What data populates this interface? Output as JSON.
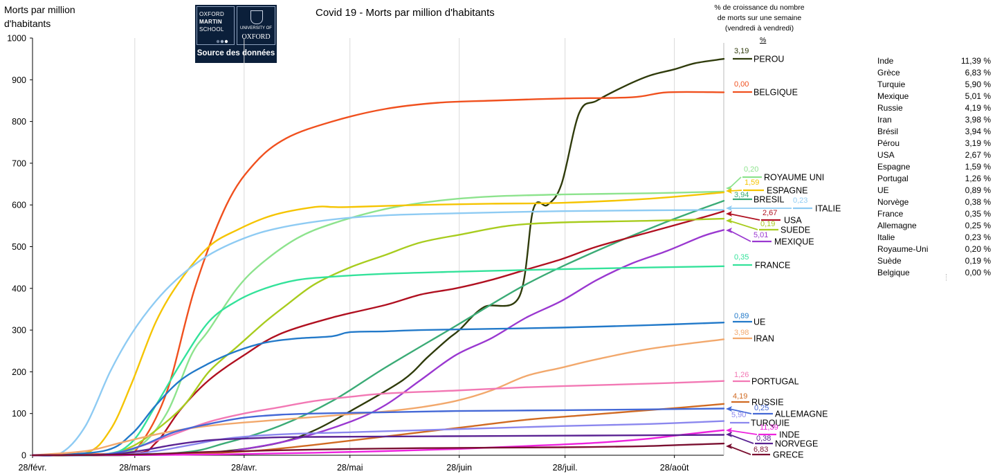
{
  "header": {
    "title": "Covid 19 - Morts par million d'habitants",
    "ylabel_line1": "Morts par million",
    "ylabel_line2": "d'habitants",
    "pct_header_line1": "% de croissance du nombre",
    "pct_header_line2": "de morts sur une semaine",
    "pct_header_line3": "(vendredi à vendredi)",
    "pct_unit": "%"
  },
  "logo": {
    "line1": "OXFORD",
    "line2": "MARTIN",
    "line3": "SCHOOL",
    "univ_line1": "UNIVERSITY OF",
    "univ_line2": "OXFORD",
    "caption": "Source des données"
  },
  "colors": {
    "background": "#ffffff",
    "logo_bg": "#0b1f3a",
    "axis": "#000000",
    "grid": "#d9d9d9"
  },
  "chart_data": {
    "type": "line",
    "title": "Covid 19 - Morts par million d'habitants",
    "ylabel": "Morts par million d'habitants",
    "ylim": [
      0,
      1000
    ],
    "yticks": [
      0,
      100,
      200,
      300,
      400,
      500,
      600,
      700,
      800,
      900,
      1000
    ],
    "x_tick_labels": [
      "28/févr.",
      "28/mars",
      "28/avr.",
      "28/mai",
      "28/juin",
      "28/juil.",
      "28/août"
    ],
    "x_domain_days": [
      0,
      196
    ],
    "grid": "vertical",
    "series": [
      {
        "name": "PEROU",
        "pct": "3,19",
        "color": "#2f3b0b",
        "x": [
          0,
          25,
          40,
          55,
          70,
          80,
          91,
          105,
          112,
          118,
          121,
          128,
          138,
          142,
          146,
          150,
          155,
          160,
          168,
          175,
          182,
          188,
          196
        ],
        "y": [
          0,
          0,
          3,
          10,
          30,
          60,
          110,
          180,
          235,
          280,
          300,
          355,
          380,
          590,
          600,
          650,
          820,
          850,
          885,
          910,
          925,
          940,
          950
        ]
      },
      {
        "name": "BELGIQUE",
        "pct": "0,00",
        "color": "#f0501e",
        "x": [
          0,
          25,
          30,
          38,
          46,
          55,
          63,
          72,
          85,
          100,
          115,
          130,
          150,
          170,
          180,
          196
        ],
        "y": [
          0,
          5,
          20,
          150,
          400,
          600,
          700,
          760,
          800,
          830,
          845,
          850,
          855,
          858,
          870,
          870
        ]
      },
      {
        "name": "ROYAUME UNI",
        "pct": "0,20",
        "color": "#8de38d",
        "x": [
          0,
          20,
          30,
          38,
          45,
          50,
          58,
          65,
          75,
          85,
          100,
          115,
          130,
          150,
          175,
          196
        ],
        "y": [
          0,
          2,
          20,
          100,
          240,
          300,
          400,
          460,
          520,
          555,
          590,
          610,
          620,
          625,
          628,
          632
        ]
      },
      {
        "name": "ESPAGNE",
        "pct": "1,59",
        "color": "#f5c400",
        "x": [
          0,
          15,
          22,
          28,
          35,
          42,
          50,
          58,
          68,
          80,
          85,
          90,
          110,
          130,
          150,
          175,
          196
        ],
        "y": [
          0,
          5,
          60,
          170,
          320,
          420,
          500,
          540,
          575,
          595,
          595,
          595,
          600,
          603,
          605,
          615,
          630
        ]
      },
      {
        "name": "BRESIL",
        "pct": "3,94",
        "color": "#3bab76",
        "x": [
          0,
          40,
          55,
          70,
          85,
          100,
          120,
          140,
          160,
          180,
          196
        ],
        "y": [
          0,
          5,
          30,
          70,
          130,
          210,
          310,
          410,
          490,
          560,
          610
        ]
      },
      {
        "name": "ITALIE",
        "pct": "0,23",
        "color": "#8ecbf3",
        "x": [
          0,
          8,
          15,
          22,
          28,
          35,
          42,
          50,
          60,
          70,
          85,
          100,
          120,
          150,
          175,
          196
        ],
        "y": [
          0,
          5,
          70,
          200,
          290,
          370,
          430,
          480,
          520,
          545,
          565,
          575,
          580,
          585,
          587,
          588
        ]
      },
      {
        "name": "USA",
        "pct": "2,67",
        "color": "#b01020",
        "x": [
          0,
          28,
          35,
          42,
          50,
          60,
          70,
          85,
          100,
          110,
          120,
          130,
          140,
          150,
          160,
          175,
          190,
          196
        ],
        "y": [
          0,
          3,
          30,
          110,
          180,
          240,
          290,
          330,
          360,
          385,
          400,
          420,
          445,
          470,
          500,
          535,
          570,
          585
        ]
      },
      {
        "name": "SUEDE",
        "pct": "0,19",
        "color": "#a8cc1e",
        "x": [
          0,
          20,
          28,
          35,
          43,
          50,
          58,
          66,
          72,
          80,
          90,
          100,
          110,
          122,
          135,
          150,
          175,
          196
        ],
        "y": [
          0,
          2,
          20,
          60,
          120,
          200,
          260,
          320,
          360,
          410,
          450,
          480,
          510,
          530,
          550,
          558,
          562,
          567
        ]
      },
      {
        "name": "MEXIQUE",
        "pct": "5,01",
        "color": "#9a38d0",
        "x": [
          0,
          45,
          60,
          75,
          90,
          100,
          110,
          120,
          130,
          140,
          150,
          160,
          170,
          180,
          190,
          196
        ],
        "y": [
          0,
          2,
          15,
          40,
          80,
          120,
          180,
          240,
          280,
          330,
          370,
          420,
          460,
          490,
          525,
          540
        ]
      },
      {
        "name": "FRANCE",
        "pct": "0,35",
        "color": "#33e29a",
        "x": [
          0,
          20,
          28,
          35,
          42,
          50,
          58,
          66,
          75,
          85,
          100,
          120,
          150,
          175,
          196
        ],
        "y": [
          0,
          2,
          30,
          120,
          220,
          320,
          370,
          400,
          420,
          428,
          435,
          440,
          446,
          450,
          453
        ]
      },
      {
        "name": "UE",
        "pct": "0,89",
        "color": "#2279c9",
        "x": [
          0,
          20,
          28,
          35,
          42,
          50,
          58,
          66,
          75,
          85,
          90,
          100,
          110,
          130,
          150,
          175,
          196
        ],
        "y": [
          0,
          10,
          50,
          120,
          180,
          220,
          250,
          270,
          280,
          285,
          295,
          297,
          300,
          303,
          306,
          312,
          318
        ]
      },
      {
        "name": "IRAN",
        "pct": "3,98",
        "color": "#f2a86c",
        "x": [
          0,
          15,
          25,
          35,
          45,
          55,
          70,
          85,
          100,
          110,
          120,
          130,
          140,
          150,
          160,
          175,
          196
        ],
        "y": [
          0,
          10,
          30,
          50,
          65,
          75,
          85,
          95,
          105,
          115,
          130,
          155,
          190,
          210,
          230,
          255,
          278
        ]
      },
      {
        "name": "PORTUGAL",
        "pct": "1,26",
        "color": "#f278b4",
        "x": [
          0,
          20,
          30,
          40,
          50,
          60,
          70,
          80,
          90,
          100,
          120,
          140,
          160,
          180,
          196
        ],
        "y": [
          0,
          2,
          20,
          50,
          80,
          100,
          115,
          130,
          140,
          148,
          155,
          163,
          168,
          173,
          178
        ]
      },
      {
        "name": "RUSSIE",
        "pct": "4,19",
        "color": "#d06a22",
        "x": [
          0,
          30,
          50,
          65,
          80,
          95,
          110,
          125,
          140,
          155,
          170,
          185,
          196
        ],
        "y": [
          0,
          1,
          5,
          12,
          25,
          40,
          55,
          70,
          85,
          95,
          105,
          115,
          123
        ]
      },
      {
        "name": "ALLEMAGNE",
        "pct": "0,25",
        "color": "#4468d6",
        "x": [
          0,
          20,
          30,
          40,
          50,
          60,
          70,
          80,
          100,
          120,
          150,
          175,
          196
        ],
        "y": [
          0,
          2,
          20,
          55,
          75,
          90,
          97,
          100,
          103,
          106,
          108,
          110,
          112
        ]
      },
      {
        "name": "TURQUIE",
        "pct": "5,90",
        "color": "#8b87ee",
        "x": [
          0,
          25,
          35,
          45,
          55,
          70,
          90,
          110,
          130,
          150,
          175,
          196
        ],
        "y": [
          0,
          2,
          10,
          25,
          40,
          50,
          55,
          60,
          65,
          70,
          75,
          82
        ]
      },
      {
        "name": "INDE",
        "pct": "11,39",
        "color": "#ee22de",
        "x": [
          0,
          40,
          60,
          80,
          100,
          120,
          140,
          160,
          175,
          185,
          196
        ],
        "y": [
          0,
          1,
          3,
          6,
          10,
          15,
          22,
          30,
          40,
          50,
          60
        ]
      },
      {
        "name": "NORVEGE",
        "pct": "0,38",
        "color": "#5a2292",
        "x": [
          0,
          20,
          30,
          40,
          50,
          60,
          70,
          80,
          100,
          125,
          150,
          175,
          196
        ],
        "y": [
          0,
          1,
          10,
          25,
          36,
          40,
          43,
          44,
          45,
          46,
          47,
          48,
          49
        ]
      },
      {
        "name": "GRECE",
        "pct": "6,83",
        "color": "#7a0f30",
        "x": [
          0,
          30,
          50,
          70,
          90,
          110,
          130,
          150,
          170,
          185,
          196
        ],
        "y": [
          0,
          2,
          8,
          12,
          15,
          17,
          18,
          19,
          21,
          25,
          28
        ]
      }
    ]
  },
  "right_table": {
    "rows": [
      {
        "country": "Inde",
        "value": "11,39 %"
      },
      {
        "country": "Grèce",
        "value": "6,83 %"
      },
      {
        "country": "Turquie",
        "value": "5,90 %"
      },
      {
        "country": "Mexique",
        "value": "5,01 %"
      },
      {
        "country": "Russie",
        "value": "4,19 %"
      },
      {
        "country": "Iran",
        "value": "3,98 %"
      },
      {
        "country": "Brésil",
        "value": "3,94 %"
      },
      {
        "country": "Pérou",
        "value": "3,19 %"
      },
      {
        "country": "USA",
        "value": "2,67 %"
      },
      {
        "country": "Espagne",
        "value": "1,59 %"
      },
      {
        "country": "Portugal",
        "value": "1,26 %"
      },
      {
        "country": "UE",
        "value": "0,89 %"
      },
      {
        "country": "Norvège",
        "value": "0,38 %"
      },
      {
        "country": "France",
        "value": "0,35 %"
      },
      {
        "country": "Allemagne",
        "value": "0,25 %"
      },
      {
        "country": "Italie",
        "value": "0,23 %"
      },
      {
        "country": "Royaume-Uni",
        "value": "0,20 %"
      },
      {
        "country": "Suède",
        "value": "0,19 %"
      },
      {
        "country": "Belgique",
        "value": "0,00 %"
      }
    ]
  }
}
